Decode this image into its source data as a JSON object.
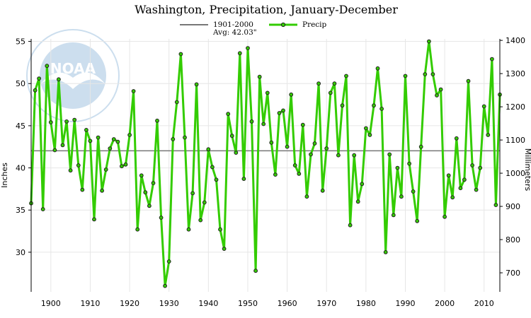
{
  "colors": {
    "series": "#33cc00",
    "average": "#777777",
    "grid": "#e6e6e6",
    "marker_fill": "#33cc00",
    "marker_stroke": "#222222",
    "logo_blue": "#1a6fb4"
  },
  "logo": {
    "name": "noaa-logo",
    "text": "NOAA"
  },
  "chart_data": {
    "type": "line",
    "title": "Washington, Precipitation, January-December",
    "xlabel": "",
    "ylabel": "Inches",
    "y2label": "Millimeters",
    "xlim": [
      1895,
      2014
    ],
    "ylim": [
      25.3,
      55.3
    ],
    "y2lim": [
      642.6,
      1404.6
    ],
    "x_ticks": [
      1900,
      1910,
      1920,
      1930,
      1940,
      1950,
      1960,
      1970,
      1980,
      1990,
      2000,
      2010
    ],
    "x_tick_labels": [
      "1900",
      "1910",
      "1920",
      "1930",
      "1940",
      "1950",
      "1960",
      "1970",
      "1980",
      "1990",
      "2000",
      "2010"
    ],
    "y_ticks": [
      30,
      35,
      40,
      45,
      50,
      55
    ],
    "y_tick_labels": [
      "30",
      "35",
      "40",
      "45",
      "50",
      "55"
    ],
    "y2_ticks": [
      700,
      800,
      900,
      1000,
      1100,
      1200,
      1300,
      1400
    ],
    "y2_tick_labels": [
      "700",
      "800",
      "900",
      "1000",
      "1100",
      "1200",
      "1300",
      "1400"
    ],
    "grid": true,
    "legend": [
      {
        "name": "average",
        "label_line1": "1901-2000",
        "label_line2": "Avg: 42.03\""
      },
      {
        "name": "precip",
        "label": "Precip"
      }
    ],
    "average": 42.03,
    "x": [
      1895,
      1896,
      1897,
      1898,
      1899,
      1900,
      1901,
      1902,
      1903,
      1904,
      1905,
      1906,
      1907,
      1908,
      1909,
      1910,
      1911,
      1912,
      1913,
      1914,
      1915,
      1916,
      1917,
      1918,
      1919,
      1920,
      1921,
      1922,
      1923,
      1924,
      1925,
      1926,
      1927,
      1928,
      1929,
      1930,
      1931,
      1932,
      1933,
      1934,
      1935,
      1936,
      1937,
      1938,
      1939,
      1940,
      1941,
      1942,
      1943,
      1944,
      1945,
      1946,
      1947,
      1948,
      1949,
      1950,
      1951,
      1952,
      1953,
      1954,
      1955,
      1956,
      1957,
      1958,
      1959,
      1960,
      1961,
      1962,
      1963,
      1964,
      1965,
      1966,
      1967,
      1968,
      1969,
      1970,
      1971,
      1972,
      1973,
      1974,
      1975,
      1976,
      1977,
      1978,
      1979,
      1980,
      1981,
      1982,
      1983,
      1984,
      1985,
      1986,
      1987,
      1988,
      1989,
      1990,
      1991,
      1992,
      1993,
      1994,
      1995,
      1996,
      1997,
      1998,
      1999,
      2000,
      2001,
      2002,
      2003,
      2004,
      2005,
      2006,
      2007,
      2008,
      2009,
      2010,
      2011,
      2012,
      2013,
      2014
    ],
    "series": [
      {
        "name": "Precip",
        "values": [
          35.8,
          49.2,
          50.6,
          35.1,
          52.1,
          45.4,
          42.1,
          50.5,
          42.7,
          45.5,
          39.7,
          45.7,
          40.3,
          37.4,
          44.5,
          43.2,
          33.9,
          43.6,
          37.3,
          39.8,
          42.3,
          43.4,
          43.1,
          40.2,
          40.4,
          43.9,
          49.1,
          32.7,
          39.1,
          37.1,
          35.5,
          38.2,
          45.6,
          34.1,
          26.0,
          28.9,
          43.4,
          47.8,
          53.5,
          43.6,
          32.7,
          37.0,
          49.9,
          33.8,
          35.9,
          42.2,
          40.1,
          38.6,
          32.7,
          30.4,
          46.4,
          43.8,
          41.8,
          53.6,
          38.7,
          54.2,
          45.5,
          27.8,
          50.8,
          45.2,
          48.9,
          43.0,
          39.2,
          46.5,
          46.8,
          42.5,
          48.7,
          40.3,
          39.3,
          45.1,
          36.6,
          41.6,
          42.9,
          50.0,
          37.3,
          42.3,
          48.9,
          50.0,
          41.5,
          47.4,
          50.9,
          33.2,
          41.5,
          36.0,
          38.1,
          44.7,
          43.9,
          47.4,
          51.8,
          47.0,
          30.0,
          41.6,
          34.4,
          40.0,
          36.6,
          50.9,
          40.5,
          37.2,
          33.7,
          42.5,
          51.1,
          55.0,
          51.1,
          48.6,
          49.3,
          34.2,
          39.1,
          36.5,
          43.5,
          37.6,
          38.6,
          50.3,
          40.3,
          37.4,
          40.0,
          47.3,
          43.9,
          52.9,
          35.6,
          48.7
        ]
      }
    ]
  }
}
